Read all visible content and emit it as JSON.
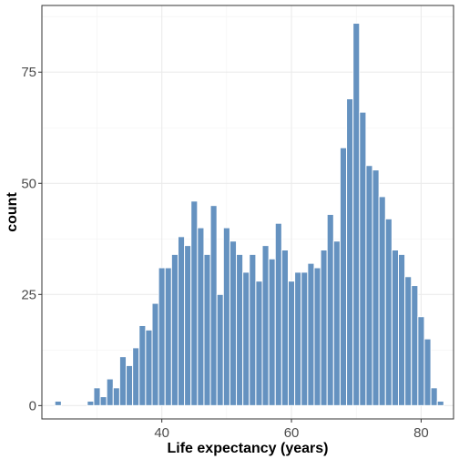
{
  "chart_data": {
    "type": "bar",
    "title": "",
    "xlabel": "Life expectancy (years)",
    "ylabel": "count",
    "xlim": [
      21.5,
      85
    ],
    "ylim": [
      -3,
      90
    ],
    "x_ticks": [
      40,
      60,
      80
    ],
    "y_ticks": [
      0,
      25,
      50,
      75
    ],
    "grid": true,
    "bar_color": "#6592c0",
    "bin_width": 1,
    "x": [
      24,
      25,
      26,
      27,
      28,
      29,
      30,
      31,
      32,
      33,
      34,
      35,
      36,
      37,
      38,
      39,
      40,
      41,
      42,
      43,
      44,
      45,
      46,
      47,
      48,
      49,
      50,
      51,
      52,
      53,
      54,
      55,
      56,
      57,
      58,
      59,
      60,
      61,
      62,
      63,
      64,
      65,
      66,
      67,
      68,
      69,
      70,
      71,
      72,
      73,
      74,
      75,
      76,
      77,
      78,
      79,
      80,
      81,
      82,
      83
    ],
    "values": [
      1,
      0,
      0,
      0,
      0,
      1,
      4,
      2,
      6,
      4,
      11,
      9,
      13,
      18,
      17,
      23,
      31,
      31,
      34,
      38,
      36,
      46,
      40,
      34,
      45,
      25,
      40,
      37,
      34,
      30,
      34,
      28,
      36,
      33,
      41,
      35,
      28,
      30,
      30,
      32,
      31,
      35,
      43,
      37,
      58,
      69,
      86,
      66,
      54,
      53,
      47,
      42,
      35,
      34,
      29,
      27,
      20,
      15,
      4,
      1
    ]
  }
}
